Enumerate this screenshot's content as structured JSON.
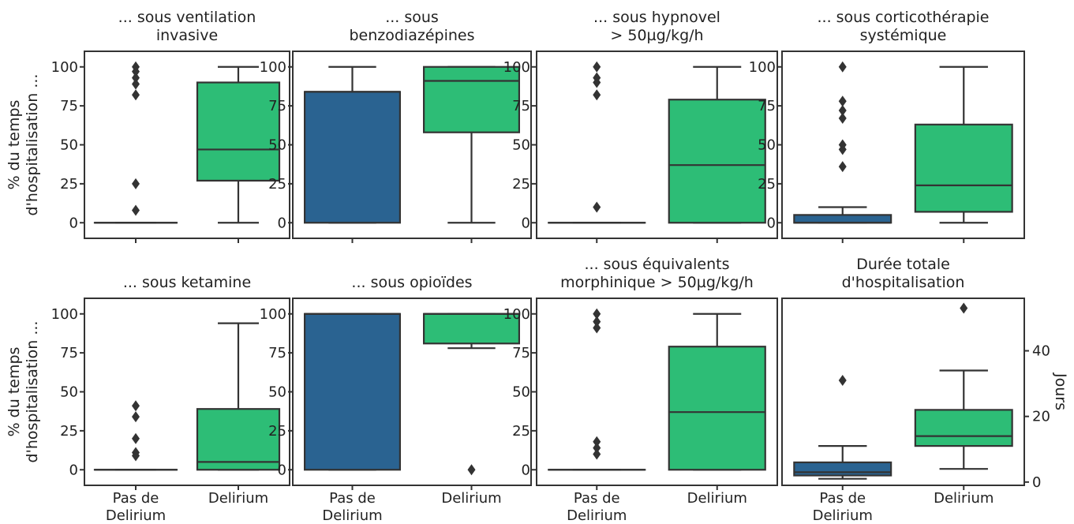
{
  "colors": {
    "no_delirium": "#2a6391",
    "delirium": "#2dbd76",
    "ink": "#333333"
  },
  "categories": [
    "Pas de\nDelirium",
    "Delirium"
  ],
  "chart_data": [
    {
      "type": "box",
      "title": "... sous ventilation\ninvasive",
      "ylabel": "% du temps\nd'hospitalisation ...",
      "ylim": [
        -10,
        110
      ],
      "yticks": [
        0,
        25,
        50,
        75,
        100
      ],
      "yaxis_side": "left",
      "series": [
        {
          "category": "Pas de\nDelirium",
          "whisker_low": 0,
          "q1": 0,
          "median": 0,
          "q3": 0,
          "whisker_high": 0,
          "outliers": [
            100,
            97,
            93,
            89,
            82,
            25,
            8
          ]
        },
        {
          "category": "Delirium",
          "whisker_low": 0,
          "q1": 27,
          "median": 47,
          "q3": 90,
          "whisker_high": 100,
          "outliers": []
        }
      ]
    },
    {
      "type": "box",
      "title": "... sous\nbenzodiazépines",
      "ylabel": "",
      "ylim": [
        -10,
        110
      ],
      "yticks": [
        0,
        25,
        50,
        75,
        100
      ],
      "yaxis_side": "left",
      "series": [
        {
          "category": "Pas de\nDelirium",
          "whisker_low": 0,
          "q1": 0,
          "median": 84,
          "q3": 84,
          "whisker_high": 100,
          "outliers": []
        },
        {
          "category": "Delirium",
          "whisker_low": 0,
          "q1": 58,
          "median": 91,
          "q3": 100,
          "whisker_high": 100,
          "outliers": []
        }
      ]
    },
    {
      "type": "box",
      "title": "... sous hypnovel\n> 50µg/kg/h",
      "ylabel": "",
      "ylim": [
        -10,
        110
      ],
      "yticks": [
        0,
        25,
        50,
        75,
        100
      ],
      "yaxis_side": "left",
      "series": [
        {
          "category": "Pas de\nDelirium",
          "whisker_low": 0,
          "q1": 0,
          "median": 0,
          "q3": 0,
          "whisker_high": 0,
          "outliers": [
            100,
            93,
            90,
            82,
            10
          ]
        },
        {
          "category": "Delirium",
          "whisker_low": 0,
          "q1": 0,
          "median": 37,
          "q3": 79,
          "whisker_high": 100,
          "outliers": []
        }
      ]
    },
    {
      "type": "box",
      "title": "... sous corticothérapie\nsystémique",
      "ylabel": "",
      "ylim": [
        -10,
        110
      ],
      "yticks": [
        0,
        25,
        50,
        75,
        100
      ],
      "yaxis_side": "left",
      "series": [
        {
          "category": "Pas de\nDelirium",
          "whisker_low": 0,
          "q1": 0,
          "median": 0,
          "q3": 5,
          "whisker_high": 10,
          "outliers": [
            100,
            78,
            72,
            67,
            50,
            47,
            36
          ]
        },
        {
          "category": "Delirium",
          "whisker_low": 0,
          "q1": 7,
          "median": 24,
          "q3": 63,
          "whisker_high": 100,
          "outliers": []
        }
      ]
    },
    {
      "type": "box",
      "title": "... sous ketamine",
      "ylabel": "% du temps\nd'hospitalisation ...",
      "ylim": [
        -10,
        110
      ],
      "yticks": [
        0,
        25,
        50,
        75,
        100
      ],
      "yaxis_side": "left",
      "series": [
        {
          "category": "Pas de\nDelirium",
          "whisker_low": 0,
          "q1": 0,
          "median": 0,
          "q3": 0,
          "whisker_high": 0,
          "outliers": [
            41,
            34,
            20,
            11,
            9
          ]
        },
        {
          "category": "Delirium",
          "whisker_low": 0,
          "q1": 0,
          "median": 5,
          "q3": 39,
          "whisker_high": 94,
          "outliers": []
        }
      ]
    },
    {
      "type": "box",
      "title": "... sous opioïdes",
      "ylabel": "",
      "ylim": [
        -10,
        110
      ],
      "yticks": [
        0,
        25,
        50,
        75,
        100
      ],
      "yaxis_side": "left",
      "series": [
        {
          "category": "Pas de\nDelirium",
          "whisker_low": 0,
          "q1": 0,
          "median": 100,
          "q3": 100,
          "whisker_high": 100,
          "outliers": []
        },
        {
          "category": "Delirium",
          "whisker_low": 78,
          "q1": 81,
          "median": 100,
          "q3": 100,
          "whisker_high": 100,
          "outliers": [
            0
          ]
        }
      ]
    },
    {
      "type": "box",
      "title": "... sous équivalents\nmorphinique > 50µg/kg/h",
      "ylabel": "",
      "ylim": [
        -10,
        110
      ],
      "yticks": [
        0,
        25,
        50,
        75,
        100
      ],
      "yaxis_side": "left",
      "series": [
        {
          "category": "Pas de\nDelirium",
          "whisker_low": 0,
          "q1": 0,
          "median": 0,
          "q3": 0,
          "whisker_high": 0,
          "outliers": [
            100,
            95,
            91,
            18,
            14,
            10
          ]
        },
        {
          "category": "Delirium",
          "whisker_low": 0,
          "q1": 0,
          "median": 37,
          "q3": 79,
          "whisker_high": 100,
          "outliers": []
        }
      ]
    },
    {
      "type": "box",
      "title": "Durée totale\nd'hospitalisation",
      "ylabel": "Jours",
      "ylim": [
        -1,
        56
      ],
      "yticks": [
        0,
        20,
        40
      ],
      "yaxis_side": "right",
      "series": [
        {
          "category": "Pas de\nDelirium",
          "whisker_low": 1,
          "q1": 2,
          "median": 3,
          "q3": 6,
          "whisker_high": 11,
          "outliers": [
            31
          ]
        },
        {
          "category": "Delirium",
          "whisker_low": 4,
          "q1": 11,
          "median": 14,
          "q3": 22,
          "whisker_high": 34,
          "outliers": [
            53
          ]
        }
      ]
    }
  ]
}
